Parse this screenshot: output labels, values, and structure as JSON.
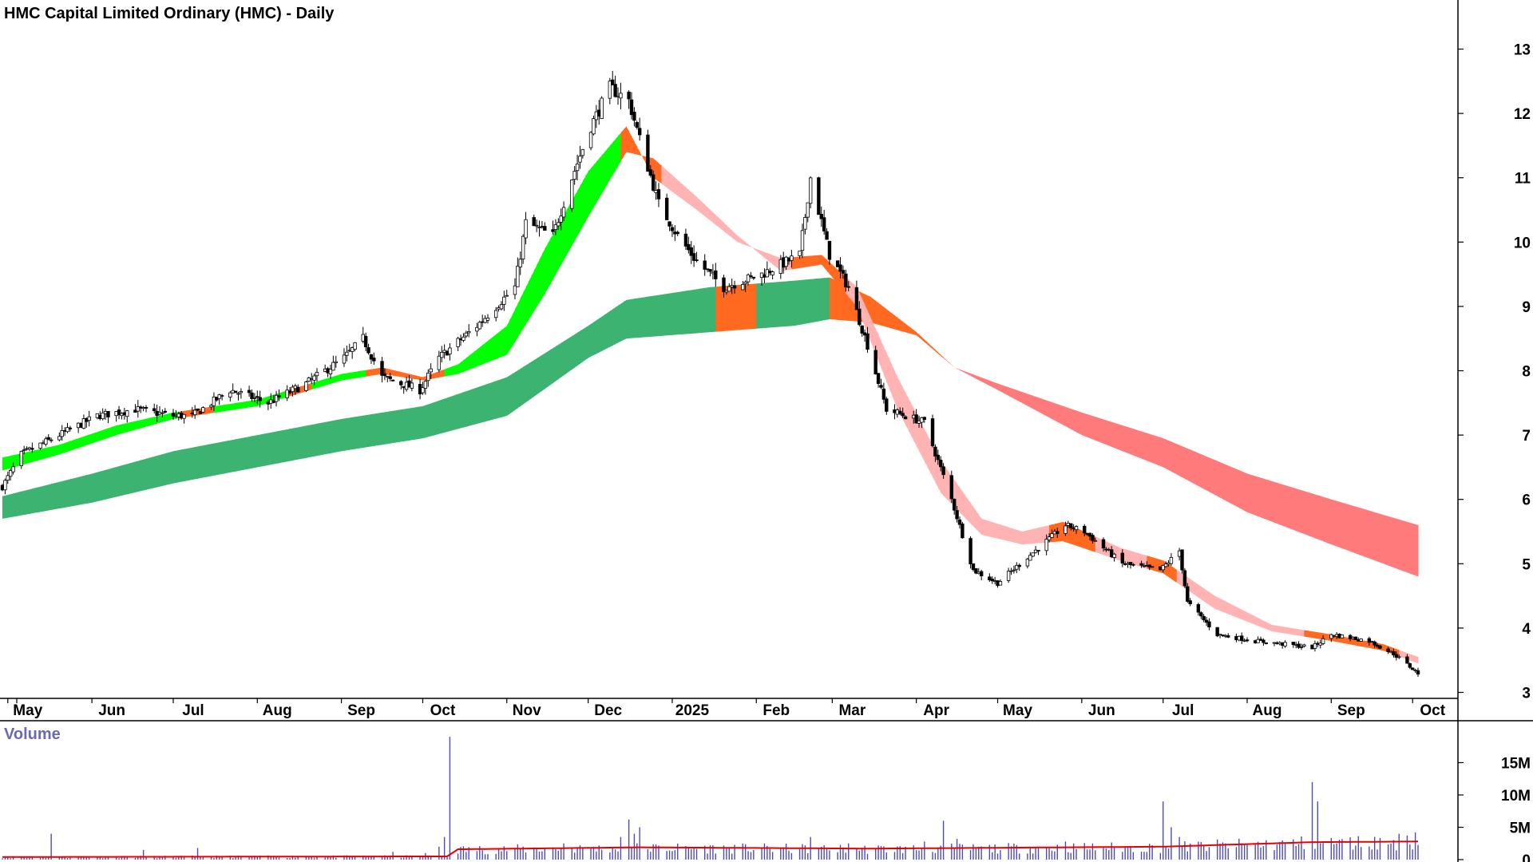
{
  "chart_data": {
    "type": "candlestick",
    "title": "HMC Capital Limited Ordinary (HMC) - Daily",
    "price_axis": {
      "ticks": [
        3,
        4,
        5,
        6,
        7,
        8,
        9,
        10,
        11,
        12,
        13
      ],
      "range": [
        2.9,
        13.3
      ]
    },
    "x_axis": {
      "months": [
        "May",
        "Jun",
        "Jul",
        "Aug",
        "Sep",
        "Oct",
        "Nov",
        "Dec",
        "2025",
        "Feb",
        "Mar",
        "Apr",
        "May",
        "Jun",
        "Jul",
        "Aug",
        "Sep",
        "Oct"
      ],
      "start": "2024-04-29",
      "end": "2025-10-03"
    },
    "price_path": [
      [
        "2024-04-29",
        6.2
      ],
      [
        "2024-05-06",
        6.7
      ],
      [
        "2024-05-20",
        7.0
      ],
      [
        "2024-06-03",
        7.3
      ],
      [
        "2024-06-17",
        7.4
      ],
      [
        "2024-07-01",
        7.3
      ],
      [
        "2024-07-08",
        7.3
      ],
      [
        "2024-07-22",
        7.7
      ],
      [
        "2024-08-05",
        7.5
      ],
      [
        "2024-08-19",
        7.8
      ],
      [
        "2024-09-02",
        8.2
      ],
      [
        "2024-09-09",
        8.5
      ],
      [
        "2024-09-16",
        7.9
      ],
      [
        "2024-09-30",
        7.7
      ],
      [
        "2024-10-07",
        8.2
      ],
      [
        "2024-10-21",
        8.7
      ],
      [
        "2024-11-04",
        9.3
      ],
      [
        "2024-11-08",
        10.3
      ],
      [
        "2024-11-18",
        10.1
      ],
      [
        "2024-11-25",
        11.0
      ],
      [
        "2024-12-02",
        11.8
      ],
      [
        "2024-12-09",
        12.4
      ],
      [
        "2024-12-16",
        12.2
      ],
      [
        "2024-12-20",
        11.6
      ],
      [
        "2024-12-27",
        10.6
      ],
      [
        "2025-01-03",
        10.1
      ],
      [
        "2025-01-10",
        9.7
      ],
      [
        "2025-01-20",
        9.3
      ],
      [
        "2025-02-03",
        9.5
      ],
      [
        "2025-02-17",
        9.8
      ],
      [
        "2025-02-21",
        11.0
      ],
      [
        "2025-02-28",
        9.8
      ],
      [
        "2025-03-07",
        9.3
      ],
      [
        "2025-03-14",
        8.4
      ],
      [
        "2025-03-21",
        7.4
      ],
      [
        "2025-04-04",
        7.2
      ],
      [
        "2025-04-14",
        6.0
      ],
      [
        "2025-04-22",
        4.9
      ],
      [
        "2025-05-01",
        4.7
      ],
      [
        "2025-05-12",
        5.1
      ],
      [
        "2025-05-26",
        5.6
      ],
      [
        "2025-06-02",
        5.5
      ],
      [
        "2025-06-16",
        5.0
      ],
      [
        "2025-06-30",
        4.9
      ],
      [
        "2025-07-07",
        5.2
      ],
      [
        "2025-07-10",
        4.4
      ],
      [
        "2025-07-21",
        3.9
      ],
      [
        "2025-08-04",
        3.8
      ],
      [
        "2025-08-25",
        3.7
      ],
      [
        "2025-09-01",
        3.9
      ],
      [
        "2025-09-15",
        3.8
      ],
      [
        "2025-09-24",
        3.6
      ],
      [
        "2025-10-03",
        3.3
      ]
    ],
    "bands": {
      "short_term": {
        "upper": [
          [
            "2024-04-29",
            6.65
          ],
          [
            "2024-05-20",
            6.85
          ],
          [
            "2024-06-10",
            7.15
          ],
          [
            "2024-07-01",
            7.35
          ],
          [
            "2024-08-01",
            7.55
          ],
          [
            "2024-09-01",
            7.95
          ],
          [
            "2024-09-16",
            8.05
          ],
          [
            "2024-10-01",
            7.9
          ],
          [
            "2024-10-14",
            8.1
          ],
          [
            "2024-11-01",
            8.7
          ],
          [
            "2024-11-15",
            9.9
          ],
          [
            "2024-12-01",
            11.1
          ],
          [
            "2024-12-15",
            11.8
          ],
          [
            "2024-12-25",
            11.0
          ],
          [
            "2025-01-10",
            10.5
          ],
          [
            "2025-01-25",
            10.0
          ],
          [
            "2025-02-10",
            9.75
          ],
          [
            "2025-02-25",
            9.8
          ],
          [
            "2025-03-10",
            9.3
          ],
          [
            "2025-03-25",
            7.9
          ],
          [
            "2025-04-10",
            6.6
          ],
          [
            "2025-04-25",
            5.7
          ],
          [
            "2025-05-10",
            5.5
          ],
          [
            "2025-05-25",
            5.65
          ],
          [
            "2025-06-15",
            5.25
          ],
          [
            "2025-07-01",
            5.05
          ],
          [
            "2025-07-20",
            4.5
          ],
          [
            "2025-08-10",
            4.05
          ],
          [
            "2025-09-01",
            3.9
          ],
          [
            "2025-09-20",
            3.75
          ],
          [
            "2025-10-03",
            3.55
          ]
        ],
        "lower": [
          [
            "2024-04-29",
            6.45
          ],
          [
            "2024-05-20",
            6.7
          ],
          [
            "2024-06-10",
            7.0
          ],
          [
            "2024-07-01",
            7.25
          ],
          [
            "2024-08-01",
            7.45
          ],
          [
            "2024-09-01",
            7.85
          ],
          [
            "2024-09-16",
            7.95
          ],
          [
            "2024-10-01",
            7.85
          ],
          [
            "2024-10-14",
            7.95
          ],
          [
            "2024-11-01",
            8.25
          ],
          [
            "2024-11-15",
            9.2
          ],
          [
            "2024-12-01",
            10.4
          ],
          [
            "2024-12-15",
            11.4
          ],
          [
            "2024-12-25",
            11.3
          ],
          [
            "2025-01-10",
            10.7
          ],
          [
            "2025-01-25",
            10.1
          ],
          [
            "2025-02-10",
            9.55
          ],
          [
            "2025-02-25",
            9.65
          ],
          [
            "2025-03-10",
            9.0
          ],
          [
            "2025-03-25",
            7.4
          ],
          [
            "2025-04-10",
            6.1
          ],
          [
            "2025-04-25",
            5.45
          ],
          [
            "2025-05-10",
            5.3
          ],
          [
            "2025-05-25",
            5.35
          ],
          [
            "2025-06-15",
            5.05
          ],
          [
            "2025-07-01",
            4.85
          ],
          [
            "2025-07-20",
            4.3
          ],
          [
            "2025-08-10",
            3.95
          ],
          [
            "2025-09-01",
            3.8
          ],
          [
            "2025-09-20",
            3.65
          ],
          [
            "2025-10-03",
            3.45
          ]
        ],
        "colors": {
          "up": "#00ff00",
          "transition": "#ff6a20",
          "down": "#ffb3b3"
        }
      },
      "long_term": {
        "upper": [
          [
            "2024-04-29",
            6.05
          ],
          [
            "2024-06-01",
            6.4
          ],
          [
            "2024-07-01",
            6.75
          ],
          [
            "2024-08-01",
            7.0
          ],
          [
            "2024-09-01",
            7.25
          ],
          [
            "2024-10-01",
            7.45
          ],
          [
            "2024-11-01",
            7.9
          ],
          [
            "2024-12-01",
            8.7
          ],
          [
            "2024-12-15",
            9.1
          ],
          [
            "2025-01-15",
            9.3
          ],
          [
            "2025-02-15",
            9.4
          ],
          [
            "2025-02-28",
            9.45
          ],
          [
            "2025-03-15",
            9.15
          ],
          [
            "2025-04-01",
            8.6
          ],
          [
            "2025-04-15",
            8.05
          ],
          [
            "2025-05-01",
            7.8
          ],
          [
            "2025-06-01",
            7.35
          ],
          [
            "2025-07-01",
            6.95
          ],
          [
            "2025-08-01",
            6.4
          ],
          [
            "2025-09-01",
            6.0
          ],
          [
            "2025-10-03",
            5.6
          ]
        ],
        "lower": [
          [
            "2024-04-29",
            5.7
          ],
          [
            "2024-06-01",
            5.95
          ],
          [
            "2024-07-01",
            6.25
          ],
          [
            "2024-08-01",
            6.5
          ],
          [
            "2024-09-01",
            6.75
          ],
          [
            "2024-10-01",
            6.95
          ],
          [
            "2024-11-01",
            7.3
          ],
          [
            "2024-12-01",
            8.2
          ],
          [
            "2024-12-15",
            8.5
          ],
          [
            "2025-01-15",
            8.6
          ],
          [
            "2025-02-15",
            8.7
          ],
          [
            "2025-02-28",
            8.8
          ],
          [
            "2025-03-15",
            8.75
          ],
          [
            "2025-04-01",
            8.55
          ],
          [
            "2025-04-15",
            8.05
          ],
          [
            "2025-05-01",
            7.7
          ],
          [
            "2025-06-01",
            7.0
          ],
          [
            "2025-07-01",
            6.5
          ],
          [
            "2025-08-01",
            5.8
          ],
          [
            "2025-09-01",
            5.3
          ],
          [
            "2025-10-03",
            4.8
          ]
        ],
        "colors": {
          "up": "#3cb371",
          "transition": "#ff6a20",
          "down": "#ff7b7b"
        }
      },
      "transition_periods": {
        "short_term": [
          [
            "2024-07-03",
            "2024-07-15"
          ],
          [
            "2024-08-12",
            "2024-08-20"
          ],
          [
            "2024-09-10",
            "2024-10-08"
          ],
          [
            "2024-12-13",
            "2024-12-27"
          ],
          [
            "2025-02-14",
            "2025-03-05"
          ],
          [
            "2025-05-20",
            "2025-06-05"
          ],
          [
            "2025-06-25",
            "2025-07-05"
          ],
          [
            "2025-08-22",
            "2025-09-25"
          ]
        ],
        "long_term": [
          [
            "2025-01-17",
            "2025-01-31"
          ],
          [
            "2025-02-28",
            "2025-04-10"
          ]
        ]
      },
      "long_term_down_from": "2025-04-10",
      "short_term_down_from": "2024-12-27"
    },
    "volume": {
      "title": "Volume",
      "ticks": [
        "0",
        "5M",
        "10M",
        "15M"
      ],
      "tick_values": [
        0,
        5,
        10,
        15
      ],
      "unit": "M",
      "max": 20,
      "spikes": [
        [
          "2024-05-17",
          4.0
        ],
        [
          "2024-06-20",
          1.5
        ],
        [
          "2024-07-10",
          1.8
        ],
        [
          "2024-09-20",
          1.2
        ],
        [
          "2024-10-02",
          1.0
        ],
        [
          "2024-10-07",
          2.0
        ],
        [
          "2024-10-09",
          3.5
        ],
        [
          "2024-10-11",
          19.0
        ],
        [
          "2024-11-22",
          2.5
        ],
        [
          "2024-12-03",
          2.0
        ],
        [
          "2024-12-13",
          3.5
        ],
        [
          "2024-12-16",
          6.2
        ],
        [
          "2024-12-18",
          4.0
        ],
        [
          "2024-12-20",
          5.0
        ],
        [
          "2025-02-21",
          3.5
        ],
        [
          "2025-03-07",
          2.5
        ],
        [
          "2025-04-04",
          2.8
        ],
        [
          "2025-04-11",
          6.0
        ],
        [
          "2025-04-16",
          3.2
        ],
        [
          "2025-05-26",
          2.8
        ],
        [
          "2025-07-01",
          9.0
        ],
        [
          "2025-07-04",
          5.0
        ],
        [
          "2025-07-07",
          3.5
        ],
        [
          "2025-08-25",
          12.0
        ],
        [
          "2025-08-27",
          9.0
        ],
        [
          "2025-09-26",
          4.0
        ],
        [
          "2025-10-02",
          4.2
        ]
      ],
      "average": [
        [
          "2024-04-29",
          0.4
        ],
        [
          "2024-10-10",
          0.5
        ],
        [
          "2024-10-14",
          1.6
        ],
        [
          "2024-12-20",
          1.9
        ],
        [
          "2025-03-15",
          1.7
        ],
        [
          "2025-07-01",
          2.0
        ],
        [
          "2025-08-25",
          2.7
        ],
        [
          "2025-10-03",
          2.8
        ]
      ],
      "bar_color": "#4b4bbf",
      "avg_color": "#e60000"
    }
  }
}
